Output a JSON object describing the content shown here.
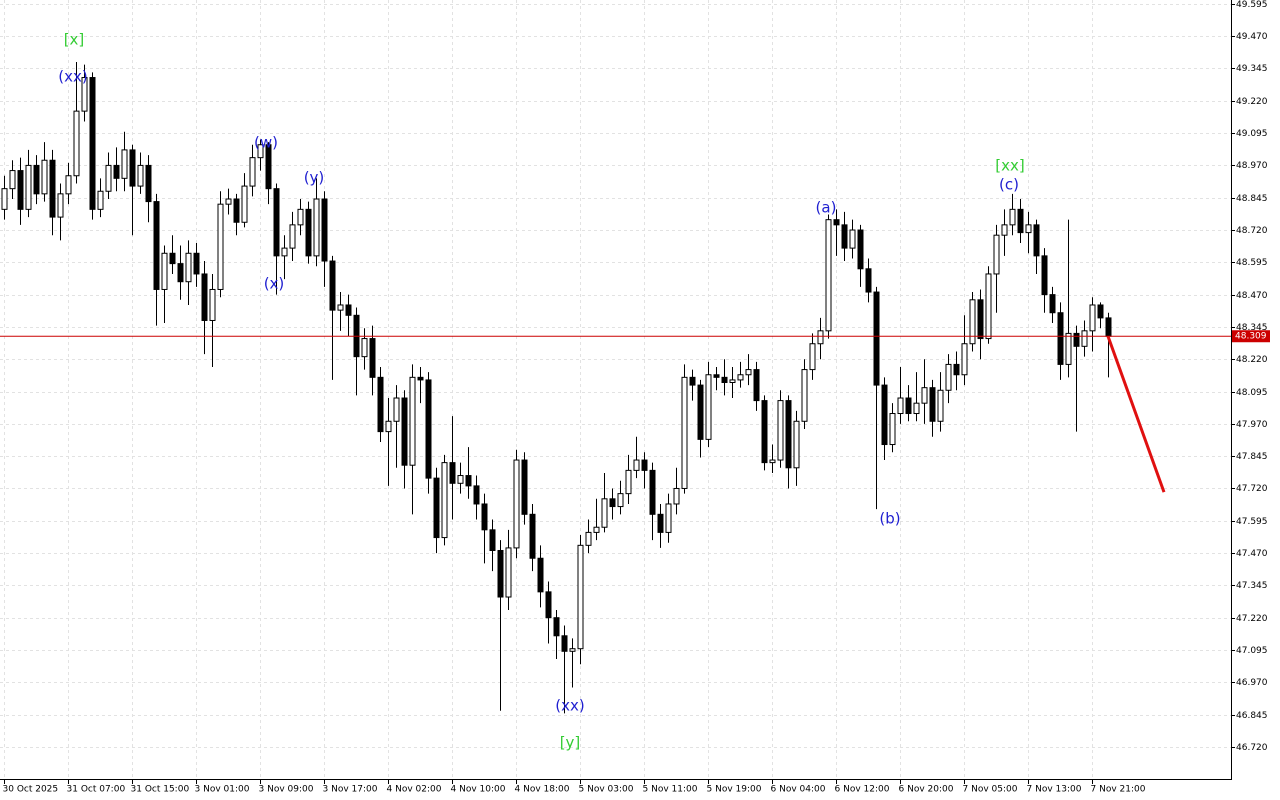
{
  "chart_data": {
    "type": "candlestick",
    "categories": [
      "30 Oct 2025",
      null,
      null,
      null,
      null,
      null,
      null,
      null,
      "31 Oct 07:00",
      null,
      null,
      null,
      null,
      null,
      null,
      null,
      "31 Oct 15:00",
      null,
      null,
      null,
      null,
      null,
      null,
      null,
      "3 Nov 01:00",
      null,
      null,
      null,
      null,
      null,
      null,
      null,
      "3 Nov 09:00",
      null,
      null,
      null,
      null,
      null,
      null,
      null,
      "3 Nov 17:00",
      null,
      null,
      null,
      null,
      null,
      null,
      null,
      "4 Nov 02:00",
      null,
      null,
      null,
      null,
      null,
      null,
      null,
      "4 Nov 10:00",
      null,
      null,
      null,
      null,
      null,
      null,
      null,
      "4 Nov 18:00",
      null,
      null,
      null,
      null,
      null,
      null,
      null,
      "5 Nov 03:00",
      null,
      null,
      null,
      null,
      null,
      null,
      null,
      "5 Nov 11:00",
      null,
      null,
      null,
      null,
      null,
      null,
      null,
      "5 Nov 19:00",
      null,
      null,
      null,
      null,
      null,
      null,
      null,
      "6 Nov 04:00",
      null,
      null,
      null,
      null,
      null,
      null,
      null,
      "6 Nov 12:00",
      null,
      null,
      null,
      null,
      null,
      null,
      null,
      "6 Nov 20:00",
      null,
      null,
      null,
      null,
      null,
      null,
      null,
      "7 Nov 05:00",
      null,
      null,
      null,
      null,
      null,
      null,
      null,
      "7 Nov 13:00",
      null,
      null,
      null,
      null,
      null,
      null,
      null,
      "7 Nov 21:00",
      null,
      null
    ],
    "open": [
      48.8,
      48.88,
      48.95,
      48.8,
      48.97,
      48.86,
      48.99,
      48.77,
      48.86,
      48.93,
      49.18,
      49.31,
      48.8,
      48.87,
      48.97,
      48.92,
      49.03,
      48.89,
      48.97,
      48.83,
      48.49,
      48.63,
      48.59,
      48.52,
      48.63,
      48.55,
      48.37,
      48.49,
      48.82,
      48.84,
      48.75,
      48.89,
      49.0,
      49.05,
      48.88,
      48.62,
      48.65,
      48.74,
      48.8,
      48.62,
      48.84,
      48.6,
      48.41,
      48.43,
      48.39,
      48.23,
      48.3,
      48.15,
      47.94,
      47.98,
      48.07,
      47.81,
      48.15,
      48.14,
      47.76,
      47.53,
      47.82,
      47.74,
      47.77,
      47.73,
      47.66,
      47.56,
      47.48,
      47.3,
      47.49,
      47.83,
      47.62,
      47.45,
      47.32,
      47.22,
      47.15,
      47.09,
      47.1,
      47.5,
      47.55,
      47.57,
      47.68,
      47.65,
      47.7,
      47.79,
      47.83,
      47.79,
      47.62,
      47.55,
      47.66,
      47.72,
      48.15,
      48.12,
      47.91,
      48.16,
      48.15,
      48.13,
      48.14,
      48.16,
      48.18,
      48.06,
      47.82,
      47.83,
      48.06,
      47.8,
      47.98,
      48.18,
      48.28,
      48.33,
      48.76,
      48.74,
      48.65,
      48.72,
      48.57,
      48.48,
      48.12,
      47.89,
      48.01,
      48.07,
      48.01,
      48.05,
      48.11,
      47.98,
      48.1,
      48.2,
      48.16,
      48.28,
      48.45,
      48.3,
      48.55,
      48.7,
      48.74,
      48.8,
      48.71,
      48.74,
      48.62,
      48.47,
      48.4,
      48.2,
      48.32,
      48.27,
      48.33,
      48.43,
      48.38
    ],
    "high": [
      48.93,
      48.99,
      49.0,
      49.03,
      49.01,
      49.06,
      49.03,
      48.9,
      48.98,
      49.37,
      49.36,
      49.33,
      48.92,
      49.02,
      49.04,
      49.1,
      49.05,
      49.02,
      49.01,
      48.86,
      48.66,
      48.7,
      48.66,
      48.68,
      48.67,
      48.6,
      48.55,
      48.87,
      48.88,
      48.86,
      48.94,
      49.05,
      49.07,
      49.06,
      48.9,
      48.7,
      48.79,
      48.84,
      48.83,
      48.92,
      48.87,
      48.62,
      48.48,
      48.47,
      48.42,
      48.34,
      48.35,
      48.19,
      48.07,
      48.12,
      48.1,
      48.2,
      48.19,
      48.17,
      47.8,
      47.85,
      48.0,
      47.82,
      47.88,
      47.77,
      47.7,
      47.6,
      47.52,
      47.56,
      47.87,
      47.86,
      47.66,
      47.5,
      47.36,
      47.25,
      47.19,
      47.14,
      47.54,
      47.6,
      47.68,
      47.78,
      47.72,
      47.75,
      47.85,
      47.92,
      47.86,
      47.82,
      47.66,
      47.7,
      47.8,
      48.2,
      48.18,
      48.14,
      48.21,
      48.19,
      48.22,
      48.19,
      48.21,
      48.24,
      48.21,
      48.08,
      47.89,
      48.1,
      48.08,
      48.02,
      48.22,
      48.32,
      48.38,
      48.78,
      48.8,
      48.79,
      48.76,
      48.74,
      48.61,
      48.5,
      48.15,
      48.05,
      48.19,
      48.12,
      48.17,
      48.22,
      48.14,
      48.17,
      48.24,
      48.25,
      48.39,
      48.48,
      48.49,
      48.58,
      48.74,
      48.8,
      48.86,
      48.84,
      48.79,
      48.76,
      48.65,
      48.5,
      48.44,
      48.76,
      48.35,
      48.37,
      48.46,
      48.44,
      48.4
    ],
    "low": [
      48.76,
      48.84,
      48.74,
      48.77,
      48.82,
      48.83,
      48.7,
      48.68,
      48.82,
      48.9,
      49.14,
      48.76,
      48.77,
      48.84,
      48.87,
      48.87,
      48.7,
      48.86,
      48.75,
      48.35,
      48.36,
      48.55,
      48.45,
      48.43,
      48.5,
      48.24,
      48.19,
      48.46,
      48.78,
      48.7,
      48.73,
      48.85,
      48.95,
      48.82,
      48.47,
      48.53,
      48.6,
      48.7,
      48.59,
      48.58,
      48.5,
      48.14,
      48.33,
      48.31,
      48.08,
      48.18,
      48.08,
      47.9,
      47.73,
      47.8,
      47.72,
      47.62,
      48.05,
      47.7,
      47.47,
      47.5,
      47.6,
      47.7,
      47.68,
      47.6,
      47.43,
      47.4,
      46.86,
      47.25,
      47.45,
      47.58,
      47.4,
      47.26,
      47.12,
      47.06,
      46.85,
      46.95,
      47.04,
      47.47,
      47.52,
      47.55,
      47.6,
      47.62,
      47.66,
      47.76,
      47.72,
      47.52,
      47.49,
      47.51,
      47.62,
      47.7,
      48.06,
      47.84,
      47.88,
      48.1,
      48.08,
      48.07,
      48.11,
      48.12,
      48.02,
      47.79,
      47.78,
      47.8,
      47.72,
      47.73,
      47.95,
      48.14,
      48.22,
      48.3,
      48.62,
      48.6,
      48.61,
      48.5,
      48.44,
      47.64,
      47.83,
      47.86,
      47.97,
      47.98,
      47.98,
      47.97,
      47.92,
      47.94,
      48.05,
      48.1,
      48.12,
      48.25,
      48.22,
      48.28,
      48.4,
      48.62,
      48.7,
      48.67,
      48.63,
      48.55,
      48.4,
      48.36,
      48.14,
      48.15,
      47.94,
      48.23,
      48.25,
      48.34,
      48.15
    ],
    "close": [
      48.88,
      48.95,
      48.8,
      48.97,
      48.86,
      48.99,
      48.77,
      48.86,
      48.93,
      49.18,
      49.31,
      48.8,
      48.87,
      48.97,
      48.92,
      49.03,
      48.89,
      48.97,
      48.83,
      48.49,
      48.63,
      48.59,
      48.52,
      48.63,
      48.55,
      48.37,
      48.49,
      48.82,
      48.84,
      48.75,
      48.89,
      49.0,
      49.05,
      48.88,
      48.62,
      48.65,
      48.74,
      48.8,
      48.62,
      48.84,
      48.6,
      48.41,
      48.43,
      48.39,
      48.23,
      48.3,
      48.15,
      47.94,
      47.98,
      48.07,
      47.81,
      48.15,
      48.14,
      47.76,
      47.53,
      47.82,
      47.74,
      47.77,
      47.73,
      47.66,
      47.56,
      47.48,
      47.3,
      47.49,
      47.83,
      47.62,
      47.45,
      47.32,
      47.22,
      47.15,
      47.09,
      47.1,
      47.5,
      47.55,
      47.57,
      47.68,
      47.65,
      47.7,
      47.79,
      47.83,
      47.79,
      47.62,
      47.55,
      47.66,
      47.72,
      48.15,
      48.12,
      47.91,
      48.16,
      48.15,
      48.13,
      48.14,
      48.16,
      48.18,
      48.06,
      47.82,
      47.83,
      48.06,
      47.8,
      47.98,
      48.18,
      48.28,
      48.33,
      48.76,
      48.74,
      48.65,
      48.72,
      48.57,
      48.48,
      48.12,
      47.89,
      48.01,
      48.07,
      48.01,
      48.05,
      48.11,
      47.98,
      48.1,
      48.2,
      48.16,
      48.28,
      48.45,
      48.3,
      48.55,
      48.7,
      48.74,
      48.8,
      48.71,
      48.74,
      48.62,
      48.47,
      48.4,
      48.2,
      48.32,
      48.27,
      48.33,
      48.43,
      48.38,
      48.309
    ],
    "up_color": "#ffffff",
    "down_color": "#000000",
    "wick_color": "#000000",
    "ylim": [
      46.592,
      49.61
    ],
    "yticks": [
      49.595,
      {
        "value": 49.47,
        "label": "49.470"
      },
      49.345,
      {
        "value": 49.22,
        "label": "49.220"
      },
      49.095,
      {
        "value": 48.97,
        "label": "48.970"
      },
      48.845,
      {
        "value": 48.72,
        "label": "48.720"
      },
      48.595,
      {
        "value": 48.47,
        "label": "48.470"
      },
      48.345,
      {
        "value": 48.22,
        "label": "48.220"
      },
      48.095,
      {
        "value": 47.97,
        "label": "47.970"
      },
      47.845,
      {
        "value": 47.72,
        "label": "47.720"
      },
      47.595,
      {
        "value": 47.47,
        "label": "47.470"
      },
      47.345,
      {
        "value": 47.22,
        "label": "47.220"
      },
      47.095,
      {
        "value": 46.97,
        "label": "46.970"
      },
      46.845,
      {
        "value": 46.72,
        "label": "46.720"
      }
    ],
    "grid": true,
    "current_price": 48.309,
    "current_price_color": "#cc0000",
    "forecast": {
      "color": "#e01010",
      "values": [
        48.309,
        47.706
      ]
    },
    "annotations": [
      {
        "text": "[x]",
        "color": "#33cc33"
      },
      {
        "text": "(xx)",
        "color": "#1f1fd0"
      },
      {
        "text": "(w)",
        "color": "#1f1fd0"
      },
      {
        "text": "(x)",
        "color": "#1f1fd0"
      },
      {
        "text": "(y)",
        "color": "#1f1fd0"
      },
      {
        "text": "(xx)",
        "color": "#1f1fd0"
      },
      {
        "text": "[y]",
        "color": "#33cc33"
      },
      {
        "text": "(a)",
        "color": "#1f1fd0"
      },
      {
        "text": "(b)",
        "color": "#1f1fd0"
      },
      {
        "text": "[xx]",
        "color": "#33cc33"
      },
      {
        "text": "(c)",
        "color": "#1f1fd0"
      }
    ]
  }
}
